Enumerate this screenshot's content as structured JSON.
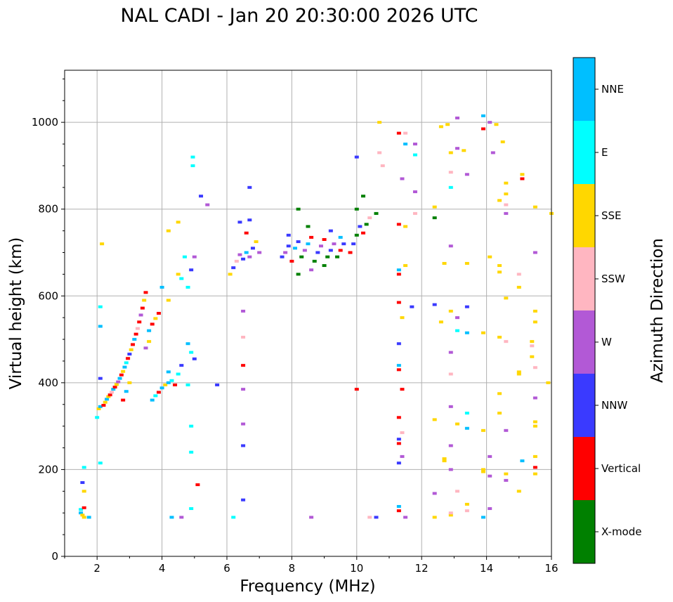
{
  "chart_data": {
    "type": "scatter",
    "title": "NAL CADI - Jan 20 20:30:00 2026 UTC",
    "xlabel": "Frequency (MHz)",
    "ylabel": "Virtual height (km)",
    "xlim": [
      1,
      16
    ],
    "ylim": [
      0,
      1120
    ],
    "xticks": [
      2,
      4,
      6,
      8,
      10,
      12,
      14,
      16
    ],
    "yticks": [
      0,
      200,
      400,
      600,
      800,
      1000
    ],
    "grid": true,
    "colorbar": {
      "title": "Azimuth Direction",
      "categories": [
        {
          "name": "X-mode",
          "color": "#008000"
        },
        {
          "name": "Vertical",
          "color": "#ff0000"
        },
        {
          "name": "NNW",
          "color": "#3a3aff"
        },
        {
          "name": "W",
          "color": "#b259d6"
        },
        {
          "name": "SSW",
          "color": "#ffb6c1"
        },
        {
          "name": "SSE",
          "color": "#ffd700"
        },
        {
          "name": "E",
          "color": "#00ffff"
        },
        {
          "name": "NNE",
          "color": "#00bfff"
        }
      ]
    },
    "points": [
      [
        1.5,
        108,
        "E"
      ],
      [
        1.5,
        100,
        "NNE"
      ],
      [
        1.55,
        95,
        "SSE"
      ],
      [
        1.6,
        112,
        "Vertical"
      ],
      [
        1.6,
        150,
        "SSE"
      ],
      [
        1.55,
        170,
        "NNW"
      ],
      [
        1.6,
        205,
        "E"
      ],
      [
        1.6,
        90,
        "SSE"
      ],
      [
        1.75,
        90,
        "NNE"
      ],
      [
        2.05,
        340,
        "SSE"
      ],
      [
        2.1,
        345,
        "NNE"
      ],
      [
        2.2,
        348,
        "Vertical"
      ],
      [
        2.25,
        355,
        "SSE"
      ],
      [
        2.3,
        362,
        "NNE"
      ],
      [
        2.35,
        368,
        "SSE"
      ],
      [
        2.4,
        372,
        "Vertical"
      ],
      [
        2.45,
        378,
        "SSW"
      ],
      [
        2.5,
        385,
        "NNE"
      ],
      [
        2.55,
        390,
        "Vertical"
      ],
      [
        2.6,
        396,
        "SSE"
      ],
      [
        2.65,
        402,
        "W"
      ],
      [
        2.7,
        410,
        "NNE"
      ],
      [
        2.75,
        418,
        "Vertical"
      ],
      [
        2.8,
        426,
        "SSE"
      ],
      [
        2.85,
        436,
        "NNE"
      ],
      [
        2.9,
        446,
        "E"
      ],
      [
        2.95,
        456,
        "Vertical"
      ],
      [
        3.0,
        466,
        "NNW"
      ],
      [
        3.05,
        476,
        "SSE"
      ],
      [
        3.1,
        488,
        "Vertical"
      ],
      [
        3.15,
        500,
        "NNE"
      ],
      [
        3.2,
        512,
        "Vertical"
      ],
      [
        3.25,
        525,
        "SSW"
      ],
      [
        3.3,
        540,
        "Vertical"
      ],
      [
        3.35,
        556,
        "W"
      ],
      [
        3.4,
        572,
        "Vertical"
      ],
      [
        3.45,
        590,
        "SSE"
      ],
      [
        3.5,
        608,
        "Vertical"
      ],
      [
        3.6,
        520,
        "NNE"
      ],
      [
        3.7,
        535,
        "Vertical"
      ],
      [
        3.8,
        548,
        "SSE"
      ],
      [
        3.9,
        560,
        "Vertical"
      ],
      [
        3.5,
        480,
        "W"
      ],
      [
        3.6,
        495,
        "SSE"
      ],
      [
        2.1,
        575,
        "E"
      ],
      [
        2.1,
        530,
        "NNE"
      ],
      [
        2.15,
        720,
        "SSE"
      ],
      [
        2.1,
        215,
        "E"
      ],
      [
        2.1,
        410,
        "NNW"
      ],
      [
        2.0,
        320,
        "E"
      ],
      [
        2.8,
        360,
        "Vertical"
      ],
      [
        2.9,
        380,
        "NNE"
      ],
      [
        3.0,
        400,
        "SSE"
      ],
      [
        3.7,
        360,
        "NNE"
      ],
      [
        3.8,
        370,
        "E"
      ],
      [
        3.9,
        378,
        "Vertical"
      ],
      [
        4.0,
        388,
        "NNE"
      ],
      [
        4.1,
        395,
        "SSE"
      ],
      [
        4.2,
        400,
        "NNE"
      ],
      [
        4.3,
        405,
        "E"
      ],
      [
        4.2,
        425,
        "NNE"
      ],
      [
        4.4,
        395,
        "Vertical"
      ],
      [
        4.0,
        620,
        "NNE"
      ],
      [
        4.2,
        590,
        "SSE"
      ],
      [
        4.5,
        650,
        "SSE"
      ],
      [
        4.6,
        640,
        "E"
      ],
      [
        4.8,
        620,
        "E"
      ],
      [
        4.9,
        660,
        "NNW"
      ],
      [
        5.0,
        690,
        "W"
      ],
      [
        4.95,
        920,
        "E"
      ],
      [
        4.95,
        900,
        "E"
      ],
      [
        4.2,
        750,
        "SSE"
      ],
      [
        4.5,
        770,
        "SSE"
      ],
      [
        4.7,
        690,
        "E"
      ],
      [
        4.8,
        490,
        "NNE"
      ],
      [
        4.9,
        470,
        "E"
      ],
      [
        5.0,
        455,
        "NNW"
      ],
      [
        4.5,
        420,
        "E"
      ],
      [
        4.6,
        440,
        "NNW"
      ],
      [
        4.3,
        90,
        "NNE"
      ],
      [
        4.9,
        300,
        "E"
      ],
      [
        4.9,
        240,
        "E"
      ],
      [
        5.2,
        830,
        "NNW"
      ],
      [
        5.4,
        810,
        "W"
      ],
      [
        5.1,
        165,
        "Vertical"
      ],
      [
        4.6,
        90,
        "W"
      ],
      [
        4.9,
        110,
        "E"
      ],
      [
        5.7,
        395,
        "NNW"
      ],
      [
        4.8,
        395,
        "E"
      ],
      [
        6.1,
        650,
        "SSE"
      ],
      [
        6.2,
        665,
        "NNW"
      ],
      [
        6.3,
        680,
        "SSW"
      ],
      [
        6.4,
        695,
        "W"
      ],
      [
        6.5,
        685,
        "NNW"
      ],
      [
        6.6,
        700,
        "NNE"
      ],
      [
        6.7,
        690,
        "W"
      ],
      [
        6.8,
        710,
        "NNW"
      ],
      [
        6.9,
        725,
        "SSE"
      ],
      [
        6.4,
        770,
        "NNW"
      ],
      [
        6.7,
        775,
        "NNW"
      ],
      [
        6.6,
        745,
        "Vertical"
      ],
      [
        7.0,
        700,
        "W"
      ],
      [
        6.5,
        565,
        "W"
      ],
      [
        6.5,
        440,
        "Vertical"
      ],
      [
        6.5,
        505,
        "SSW"
      ],
      [
        6.5,
        385,
        "W"
      ],
      [
        6.5,
        305,
        "W"
      ],
      [
        6.5,
        255,
        "NNW"
      ],
      [
        6.5,
        130,
        "NNW"
      ],
      [
        6.7,
        850,
        "NNW"
      ],
      [
        6.2,
        90,
        "E"
      ],
      [
        7.7,
        690,
        "NNW"
      ],
      [
        7.8,
        700,
        "W"
      ],
      [
        7.9,
        715,
        "NNW"
      ],
      [
        8.0,
        680,
        "Vertical"
      ],
      [
        8.1,
        710,
        "NNE"
      ],
      [
        8.2,
        725,
        "NNW"
      ],
      [
        8.3,
        690,
        "X-mode"
      ],
      [
        8.4,
        705,
        "W"
      ],
      [
        8.5,
        720,
        "NNE"
      ],
      [
        8.6,
        735,
        "Vertical"
      ],
      [
        8.7,
        680,
        "X-mode"
      ],
      [
        8.8,
        700,
        "NNW"
      ],
      [
        8.9,
        715,
        "W"
      ],
      [
        9.0,
        730,
        "Vertical"
      ],
      [
        9.1,
        690,
        "X-mode"
      ],
      [
        9.2,
        705,
        "NNW"
      ],
      [
        9.3,
        720,
        "W"
      ],
      [
        9.4,
        690,
        "X-mode"
      ],
      [
        9.5,
        705,
        "Vertical"
      ],
      [
        9.6,
        720,
        "NNW"
      ],
      [
        8.2,
        650,
        "X-mode"
      ],
      [
        8.6,
        660,
        "W"
      ],
      [
        9.0,
        670,
        "X-mode"
      ],
      [
        8.5,
        760,
        "X-mode"
      ],
      [
        8.2,
        800,
        "X-mode"
      ],
      [
        7.9,
        740,
        "NNW"
      ],
      [
        9.8,
        700,
        "Vertical"
      ],
      [
        9.9,
        720,
        "NNW"
      ],
      [
        10.0,
        740,
        "X-mode"
      ],
      [
        10.1,
        760,
        "NNW"
      ],
      [
        10.2,
        745,
        "Vertical"
      ],
      [
        10.3,
        765,
        "X-mode"
      ],
      [
        10.4,
        780,
        "SSW"
      ],
      [
        10.6,
        790,
        "X-mode"
      ],
      [
        10.2,
        830,
        "X-mode"
      ],
      [
        10.0,
        800,
        "X-mode"
      ],
      [
        10.0,
        920,
        "NNW"
      ],
      [
        10.7,
        930,
        "SSW"
      ],
      [
        10.8,
        900,
        "SSW"
      ],
      [
        10.7,
        1000,
        "SSE"
      ],
      [
        10.0,
        385,
        "Vertical"
      ],
      [
        9.2,
        750,
        "NNW"
      ],
      [
        9.5,
        735,
        "NNE"
      ],
      [
        10.6,
        90,
        "NNW"
      ],
      [
        10.4,
        90,
        "SSW"
      ],
      [
        8.6,
        90,
        "W"
      ],
      [
        11.3,
        650,
        "Vertical"
      ],
      [
        11.3,
        660,
        "NNE"
      ],
      [
        11.3,
        585,
        "Vertical"
      ],
      [
        11.3,
        490,
        "NNW"
      ],
      [
        11.3,
        440,
        "NNE"
      ],
      [
        11.3,
        430,
        "Vertical"
      ],
      [
        11.4,
        385,
        "Vertical"
      ],
      [
        11.3,
        320,
        "Vertical"
      ],
      [
        11.4,
        285,
        "SSW"
      ],
      [
        11.3,
        270,
        "NNW"
      ],
      [
        11.3,
        260,
        "Vertical"
      ],
      [
        11.4,
        230,
        "W"
      ],
      [
        11.3,
        215,
        "NNW"
      ],
      [
        11.3,
        115,
        "NNE"
      ],
      [
        11.3,
        105,
        "Vertical"
      ],
      [
        11.5,
        90,
        "W"
      ],
      [
        11.5,
        670,
        "SSE"
      ],
      [
        11.5,
        760,
        "SSE"
      ],
      [
        11.3,
        765,
        "Vertical"
      ],
      [
        11.4,
        870,
        "W"
      ],
      [
        11.3,
        975,
        "Vertical"
      ],
      [
        11.5,
        975,
        "SSW"
      ],
      [
        11.5,
        950,
        "NNE"
      ],
      [
        11.8,
        950,
        "W"
      ],
      [
        11.8,
        925,
        "E"
      ],
      [
        11.7,
        575,
        "NNW"
      ],
      [
        11.4,
        550,
        "SSE"
      ],
      [
        11.8,
        840,
        "W"
      ],
      [
        11.8,
        790,
        "SSW"
      ],
      [
        12.4,
        805,
        "SSE"
      ],
      [
        12.4,
        780,
        "X-mode"
      ],
      [
        12.6,
        990,
        "SSE"
      ],
      [
        12.8,
        995,
        "SSE"
      ],
      [
        13.1,
        1010,
        "W"
      ],
      [
        13.1,
        940,
        "W"
      ],
      [
        13.3,
        935,
        "SSE"
      ],
      [
        13.4,
        880,
        "W"
      ],
      [
        12.9,
        930,
        "SSE"
      ],
      [
        12.9,
        885,
        "SSW"
      ],
      [
        12.9,
        850,
        "E"
      ],
      [
        12.9,
        715,
        "W"
      ],
      [
        12.7,
        675,
        "SSE"
      ],
      [
        13.4,
        675,
        "SSE"
      ],
      [
        13.9,
        1015,
        "NNE"
      ],
      [
        14.1,
        1000,
        "W"
      ],
      [
        14.3,
        995,
        "SSE"
      ],
      [
        13.9,
        985,
        "Vertical"
      ],
      [
        14.2,
        930,
        "W"
      ],
      [
        14.5,
        955,
        "SSE"
      ],
      [
        15.1,
        880,
        "SSE"
      ],
      [
        15.1,
        870,
        "Vertical"
      ],
      [
        14.6,
        860,
        "SSE"
      ],
      [
        14.6,
        835,
        "SSE"
      ],
      [
        14.4,
        820,
        "SSE"
      ],
      [
        15.5,
        805,
        "SSE"
      ],
      [
        16.0,
        790,
        "SSE"
      ],
      [
        14.6,
        790,
        "W"
      ],
      [
        14.6,
        810,
        "SSW"
      ],
      [
        15.5,
        700,
        "W"
      ],
      [
        14.1,
        690,
        "SSE"
      ],
      [
        14.4,
        670,
        "SSE"
      ],
      [
        14.4,
        655,
        "SSE"
      ],
      [
        15.0,
        650,
        "SSW"
      ],
      [
        15.0,
        620,
        "SSE"
      ],
      [
        14.6,
        595,
        "SSE"
      ],
      [
        15.5,
        565,
        "SSE"
      ],
      [
        15.5,
        540,
        "SSE"
      ],
      [
        13.9,
        515,
        "SSE"
      ],
      [
        14.4,
        505,
        "SSE"
      ],
      [
        14.6,
        495,
        "SSW"
      ],
      [
        15.4,
        495,
        "SSE"
      ],
      [
        15.4,
        485,
        "SSW"
      ],
      [
        15.4,
        460,
        "SSE"
      ],
      [
        15.5,
        435,
        "SSW"
      ],
      [
        15.0,
        420,
        "SSE"
      ],
      [
        15.0,
        425,
        "SSE"
      ],
      [
        15.9,
        400,
        "SSE"
      ],
      [
        14.4,
        375,
        "SSE"
      ],
      [
        15.5,
        365,
        "W"
      ],
      [
        15.5,
        310,
        "SSE"
      ],
      [
        15.5,
        300,
        "SSE"
      ],
      [
        14.6,
        290,
        "W"
      ],
      [
        14.4,
        330,
        "SSE"
      ],
      [
        13.4,
        330,
        "E"
      ],
      [
        13.4,
        295,
        "NNE"
      ],
      [
        13.1,
        305,
        "SSE"
      ],
      [
        12.9,
        345,
        "W"
      ],
      [
        12.9,
        255,
        "W"
      ],
      [
        12.7,
        225,
        "SSE"
      ],
      [
        12.7,
        220,
        "SSE"
      ],
      [
        12.9,
        200,
        "W"
      ],
      [
        12.4,
        315,
        "SSE"
      ],
      [
        12.4,
        145,
        "W"
      ],
      [
        12.4,
        90,
        "SSE"
      ],
      [
        12.9,
        95,
        "SSE"
      ],
      [
        12.9,
        100,
        "SSW"
      ],
      [
        13.1,
        150,
        "SSW"
      ],
      [
        13.4,
        120,
        "SSE"
      ],
      [
        13.4,
        105,
        "SSW"
      ],
      [
        13.9,
        200,
        "SSE"
      ],
      [
        13.9,
        195,
        "SSE"
      ],
      [
        14.1,
        230,
        "W"
      ],
      [
        14.1,
        185,
        "W"
      ],
      [
        14.1,
        110,
        "W"
      ],
      [
        13.9,
        90,
        "NNE"
      ],
      [
        14.6,
        190,
        "SSE"
      ],
      [
        14.6,
        175,
        "W"
      ],
      [
        15.0,
        150,
        "SSE"
      ],
      [
        15.1,
        220,
        "NNE"
      ],
      [
        15.5,
        230,
        "SSE"
      ],
      [
        15.5,
        205,
        "Vertical"
      ],
      [
        15.5,
        190,
        "SSE"
      ],
      [
        12.4,
        580,
        "NNW"
      ],
      [
        12.6,
        540,
        "SSE"
      ],
      [
        12.9,
        565,
        "SSE"
      ],
      [
        13.1,
        550,
        "W"
      ],
      [
        13.1,
        520,
        "E"
      ],
      [
        13.4,
        515,
        "NNE"
      ],
      [
        13.4,
        575,
        "NNW"
      ],
      [
        12.9,
        470,
        "W"
      ],
      [
        12.9,
        420,
        "SSW"
      ],
      [
        13.9,
        290,
        "SSE"
      ]
    ]
  }
}
